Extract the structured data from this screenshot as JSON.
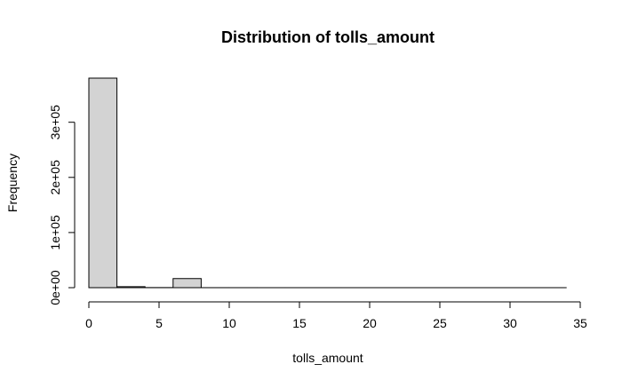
{
  "chart_data": {
    "type": "bar",
    "title": "Distribution of tolls_amount",
    "xlabel": "tolls_amount",
    "ylabel": "Frequency",
    "bins": [
      {
        "start": 0,
        "end": 2,
        "count": 380000
      },
      {
        "start": 2,
        "end": 4,
        "count": 1800
      },
      {
        "start": 4,
        "end": 6,
        "count": 200
      },
      {
        "start": 6,
        "end": 8,
        "count": 16500
      },
      {
        "start": 8,
        "end": 10,
        "count": 40
      },
      {
        "start": 10,
        "end": 12,
        "count": 20
      },
      {
        "start": 12,
        "end": 14,
        "count": 10
      },
      {
        "start": 14,
        "end": 16,
        "count": 5
      },
      {
        "start": 16,
        "end": 18,
        "count": 5
      },
      {
        "start": 18,
        "end": 20,
        "count": 3
      },
      {
        "start": 20,
        "end": 22,
        "count": 2
      },
      {
        "start": 22,
        "end": 24,
        "count": 1
      },
      {
        "start": 24,
        "end": 26,
        "count": 1
      },
      {
        "start": 26,
        "end": 28,
        "count": 1
      },
      {
        "start": 28,
        "end": 30,
        "count": 1
      },
      {
        "start": 30,
        "end": 32,
        "count": 1
      },
      {
        "start": 32,
        "end": 34,
        "count": 1
      }
    ],
    "xlim": [
      0,
      35
    ],
    "ylim": [
      0,
      380000
    ],
    "xticks": [
      0,
      5,
      10,
      15,
      20,
      25,
      30,
      35
    ],
    "xtick_labels": [
      "0",
      "5",
      "10",
      "15",
      "20",
      "25",
      "30",
      "35"
    ],
    "yticks": [
      0,
      100000,
      200000,
      300000
    ],
    "ytick_labels": [
      "0e+00",
      "1e+05",
      "2e+05",
      "3e+05"
    ],
    "bar_fill": "#d3d3d3",
    "bar_stroke": "#000000",
    "grid": false,
    "legend": "none"
  }
}
